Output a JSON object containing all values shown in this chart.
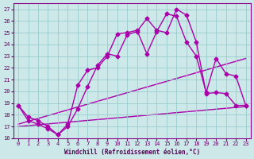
{
  "xlabel": "Windchill (Refroidissement éolien,°C)",
  "bg_color": "#cce8e8",
  "line_color": "#aa00aa",
  "grid_color": "#99cccc",
  "xlim": [
    -0.5,
    23.5
  ],
  "ylim": [
    16,
    27.5
  ],
  "xticks": [
    0,
    1,
    2,
    3,
    4,
    5,
    6,
    7,
    8,
    9,
    10,
    11,
    12,
    13,
    14,
    15,
    16,
    17,
    18,
    19,
    20,
    21,
    22,
    23
  ],
  "yticks": [
    16,
    17,
    18,
    19,
    20,
    21,
    22,
    23,
    24,
    25,
    26,
    27
  ],
  "curve1_x": [
    0,
    1,
    2,
    3,
    4,
    5,
    6,
    7,
    8,
    9,
    10,
    11,
    12,
    13,
    14,
    15,
    16,
    17,
    18,
    19,
    20,
    21,
    22,
    23
  ],
  "curve1_y": [
    18.8,
    17.8,
    17.5,
    17.0,
    16.3,
    17.2,
    20.5,
    21.8,
    22.0,
    23.0,
    24.9,
    25.0,
    25.2,
    23.2,
    25.1,
    26.6,
    26.4,
    24.2,
    23.0,
    19.9,
    22.8,
    21.5,
    21.3,
    18.8
  ],
  "curve2_x": [
    0,
    1,
    2,
    3,
    4,
    5,
    6,
    7,
    8,
    9,
    10,
    11,
    12,
    13,
    14,
    15,
    16,
    17,
    18,
    19,
    20,
    21,
    22,
    23
  ],
  "curve2_y": [
    18.8,
    17.5,
    17.2,
    16.8,
    16.3,
    17.0,
    18.5,
    20.4,
    22.2,
    23.2,
    23.0,
    24.8,
    25.1,
    26.2,
    25.2,
    25.0,
    27.0,
    26.5,
    24.2,
    19.8,
    19.9,
    19.8,
    18.8,
    18.8
  ],
  "line1_x": [
    0,
    23
  ],
  "line1_y": [
    17.2,
    22.8
  ],
  "line2_x": [
    0,
    23
  ],
  "line2_y": [
    17.0,
    18.7
  ],
  "marker": "D",
  "markersize": 2.5,
  "linewidth": 1.0
}
